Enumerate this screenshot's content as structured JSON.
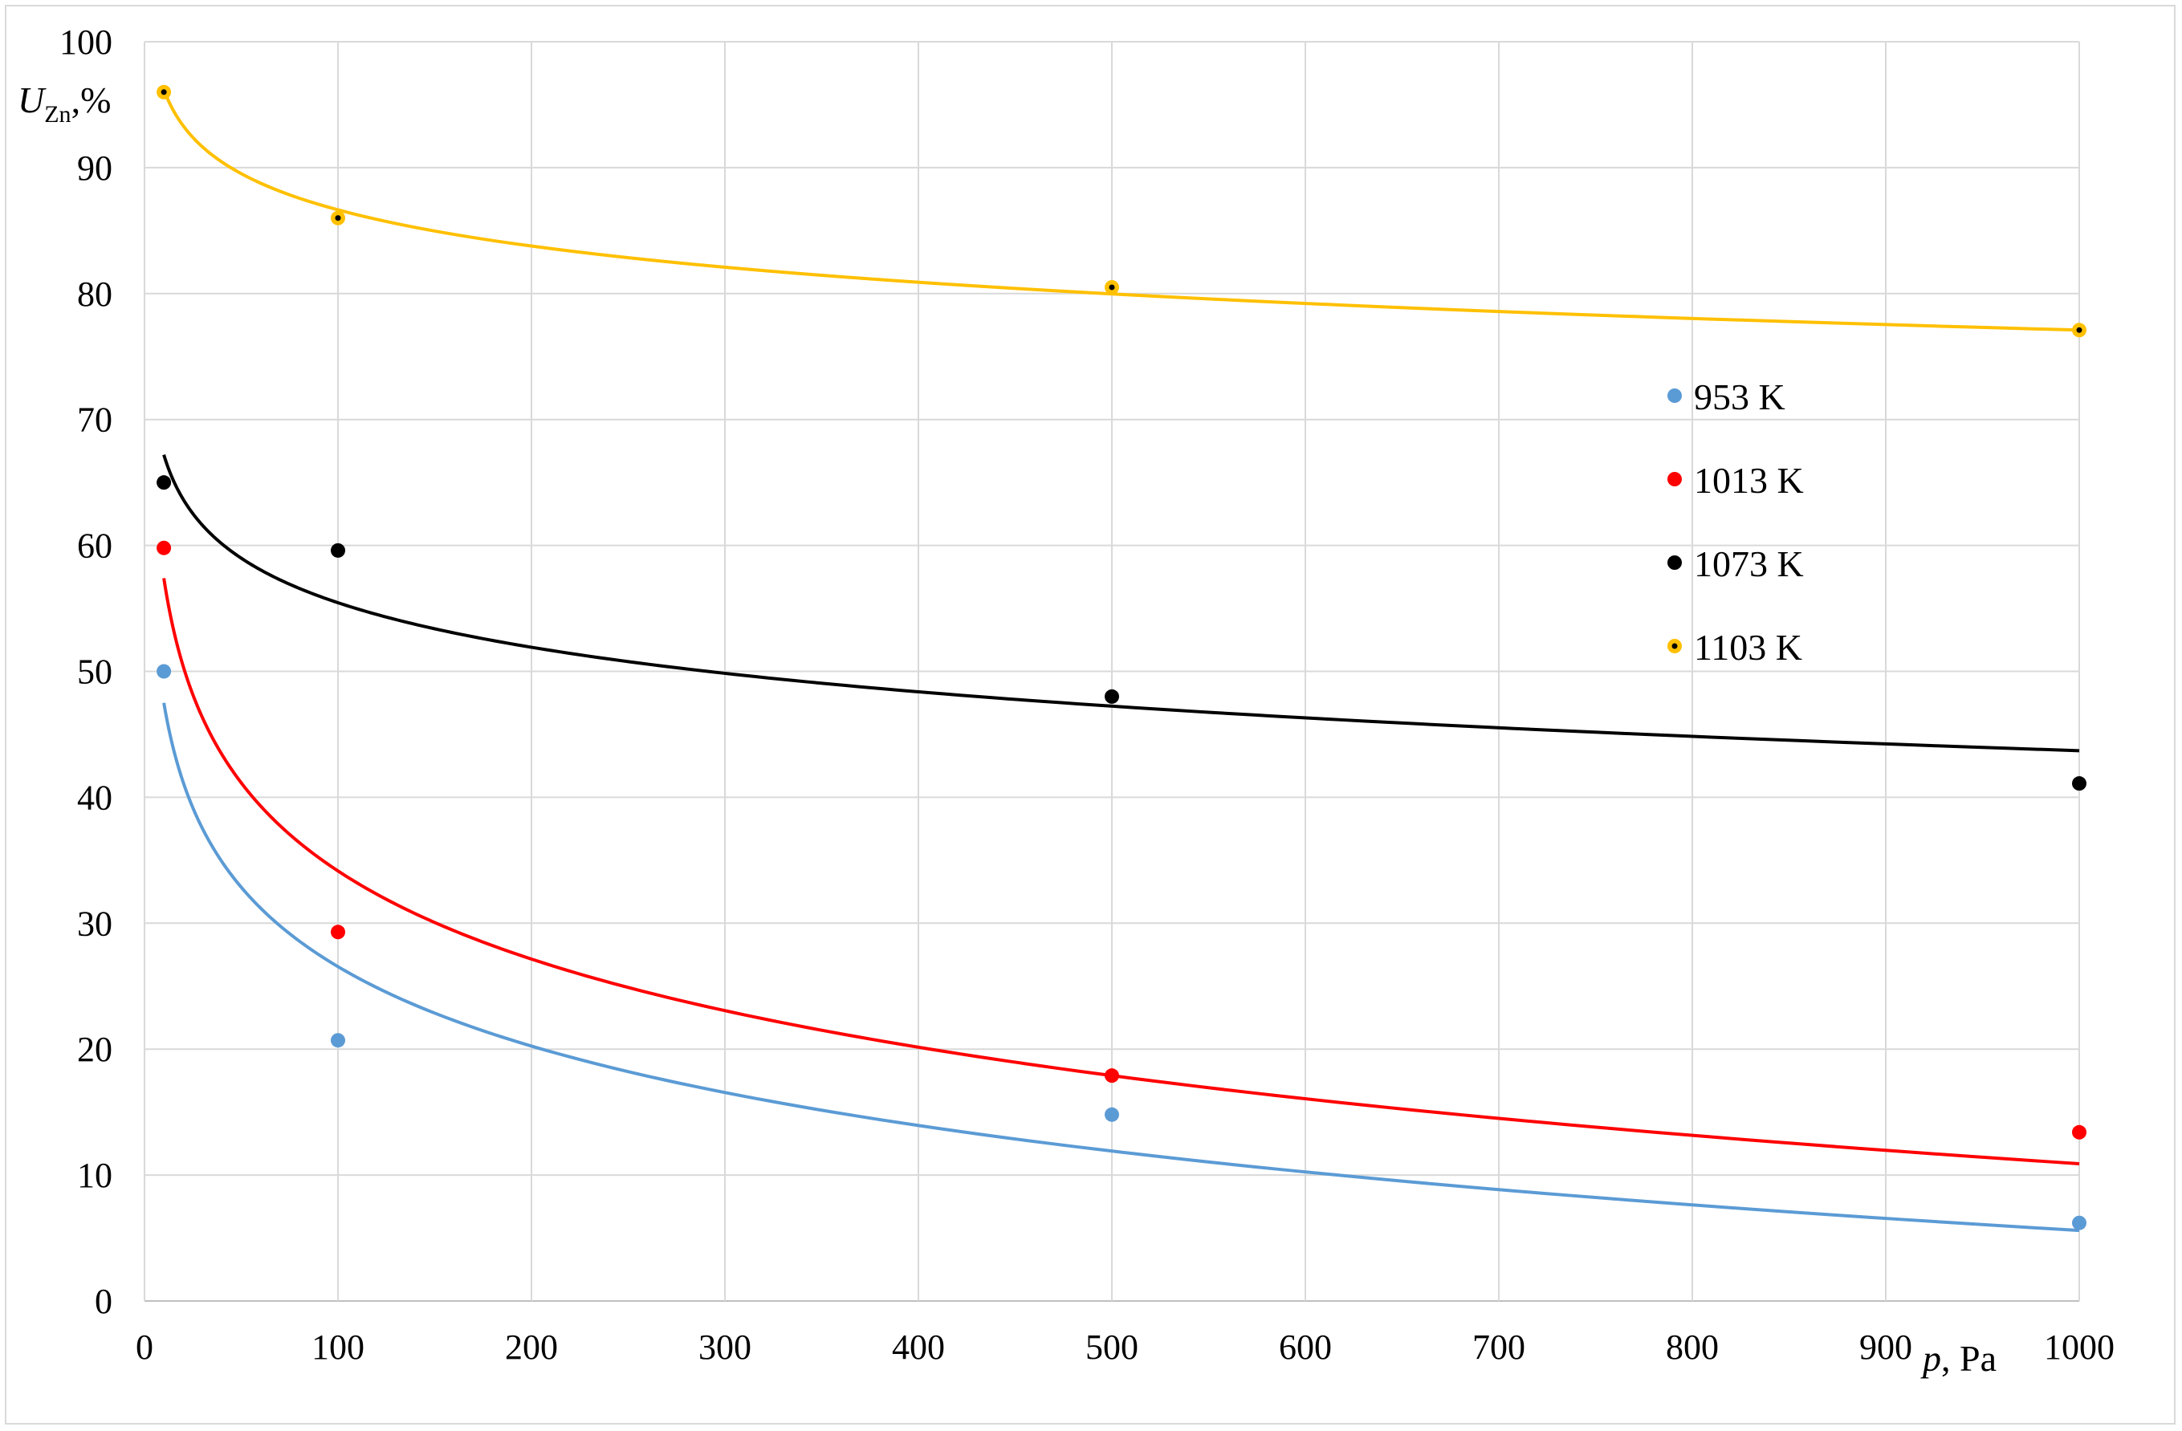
{
  "chart_data": {
    "type": "scatter",
    "title": "",
    "xlabel": {
      "symbol": "p",
      "unit": ", Pa"
    },
    "ylabel": {
      "symbol": "U",
      "subscript": "Zn",
      "unit": ",%"
    },
    "xlim": [
      0,
      1000
    ],
    "ylim": [
      0,
      100
    ],
    "x_ticks": [
      0,
      100,
      200,
      300,
      400,
      500,
      600,
      700,
      800,
      900,
      1000
    ],
    "y_ticks": [
      0,
      10,
      20,
      30,
      40,
      50,
      60,
      70,
      80,
      90,
      100
    ],
    "grid": true,
    "legend_position": "right",
    "trendline": "logarithmic",
    "series": [
      {
        "name": "953 K",
        "color": "#5b9bd5",
        "marker": "dot",
        "x": [
          10,
          100,
          500,
          1000
        ],
        "y": [
          50,
          20.7,
          14.8,
          6.2
        ],
        "trend_x": [
          10,
          1000
        ],
        "trend_y": [
          47.5,
          5.6
        ]
      },
      {
        "name": "1013 K",
        "color": "#ff0000",
        "marker": "dot",
        "x": [
          10,
          100,
          500,
          1000
        ],
        "y": [
          59.8,
          29.3,
          17.9,
          13.4
        ],
        "trend_x": [
          10,
          1000
        ],
        "trend_y": [
          57.4,
          10.9
        ]
      },
      {
        "name": "1073 K",
        "color": "#000000",
        "marker": "dot",
        "x": [
          10,
          100,
          500,
          1000
        ],
        "y": [
          65,
          59.6,
          48,
          41.1
        ],
        "trend_x": [
          10,
          1000
        ],
        "trend_y": [
          67.2,
          43.7
        ]
      },
      {
        "name": "1103 K",
        "color": "#ffc000",
        "marker": "ringed-dot",
        "x": [
          10,
          100,
          500,
          1000
        ],
        "y": [
          96,
          86,
          80.5,
          77.1
        ],
        "trend_x": [
          10,
          1000
        ],
        "trend_y": [
          96.2,
          77.1
        ]
      }
    ]
  }
}
